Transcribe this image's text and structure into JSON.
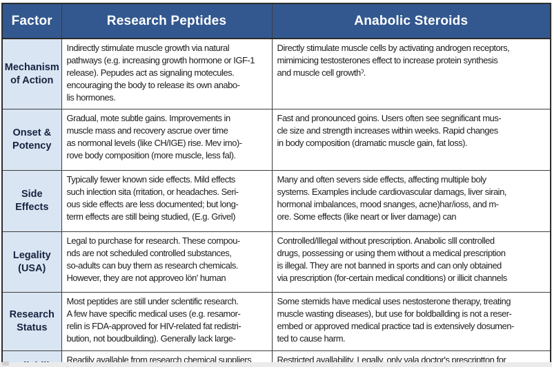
{
  "table": {
    "headers": [
      "Factor",
      "Research Peptides",
      "Anabolic Steroids"
    ],
    "rows": [
      {
        "factor": "Mechanism\nof Action",
        "peptides": "Indirectly stimulate muscle growth via natural\npathways (e.g. increasing growth hormone or IGF-1\nrelease). Pepudes act as signaling motecules.\nencouraging the body to release its own anabo-\nlis hormones.",
        "steroids": "Directly stimulate muscle cells by activating androgen receptors,\nmimimicing testosterones effect to increase protein synthesis\nand muscle cell growthˀ."
      },
      {
        "factor": "Onset &\nPotency",
        "peptides": "Gradual, mote subtle gains. Improvements in\nmuscle mass and recovery ascrue over time\nas normonal levels (like CH/IGE) rise. Mev imo)-\nrove body composition (more muscle, less fal).",
        "steroids": "Fast and pronounced goins. Users often see segnificant mus-\ncle size and strength increases within weeks. Rapid changes\nin body composition (dramatic muscle gain, fat loss)."
      },
      {
        "factor": "Side\nEffects",
        "peptides": "Typically fewer known side effects. Mild effects\nsuch inlection sita (rritation, or headaches. Seri-\nous side effects are less documented; but long-\nterm effects are still being studied, (E.g. Grivel)",
        "steroids": "Many and often severs side effects, affecting multiple boly\nsystems. Examples include cardiovascular damags, liver sirain,\nhormonal imbalances, mood snanges, acne)har/ioss, and m-\nore. Some effects (like neart or liver damage) can"
      },
      {
        "factor": "Legality\n(USA)",
        "peptides": "Legal to purchase for research. These compou-\nnds are not scheduled controlled substances,\nso-adults can buy them as research chemicals.\nHowever, they are not approveo lön' human",
        "steroids": "Controlled/Illegal without prescription. Anabolic slll controlled\ndrugs, possessing or using them without a medical prescription\nis illegal. They are not banned in sports and can only obtained\nvia prescription (for-certain medical conditions) or illicit channels"
      },
      {
        "factor": "Research\nStatus",
        "peptides": "Most peptides are still under sclentific research.\nA few have specific medical uses (e.g. resamor-\nrelin is FDA-approved for HIV-related fat redistri-\nbution, not boudbuilding). Generally lack large-",
        "steroids": "Some stemids have medical uses nestosterone therapy, treating\nmuscle wasting diseases), but use for boldballding is not a reser-\nembed or approved medical practice tad is extensively dosumen-\nted to cause harm."
      },
      {
        "factor": "Avallability",
        "peptides": "Readily avallable from research chemical suppliers\nfike Spartan Pepudes. Products are soid in'vilals",
        "steroids": "Restricted avallability, Legally, only vala doctor's prescriptton for\nquality and oosing can duestile mildalirues cr undergrilund lad labs."
      }
    ]
  },
  "colors": {
    "header_bg": "#33588F",
    "header_text": "#FFFFFF",
    "factor_bg": "#D9E5F3",
    "factor_text": "#16233F",
    "body_text": "#1C1C1C",
    "border": "#3D3D3D"
  }
}
